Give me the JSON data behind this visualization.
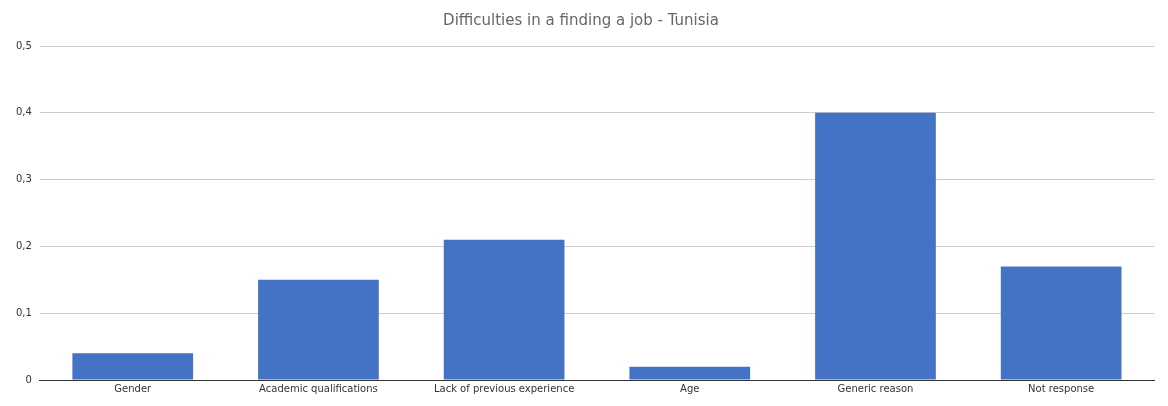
{
  "chart_data": {
    "type": "bar",
    "title": "Difficulties in a finding a job - Tunisia",
    "categories": [
      "Gender",
      "Academic qualifications",
      "Lack of previous experience",
      "Age",
      "Generic reason",
      "Not response"
    ],
    "values": [
      0.04,
      0.15,
      0.21,
      0.02,
      0.4,
      0.17
    ],
    "color": "#4472c4",
    "ylim": [
      0,
      0.5
    ],
    "yticks": [
      0,
      {
        "value": 0.1,
        "label": "0,1"
      },
      {
        "value": 0.2,
        "label": "0,2"
      },
      {
        "value": 0.3,
        "label": "0,3"
      },
      {
        "value": 0.4,
        "label": "0,4"
      },
      {
        "value": 0.5,
        "label": "0,5"
      }
    ],
    "grid": "y",
    "legend": false
  }
}
